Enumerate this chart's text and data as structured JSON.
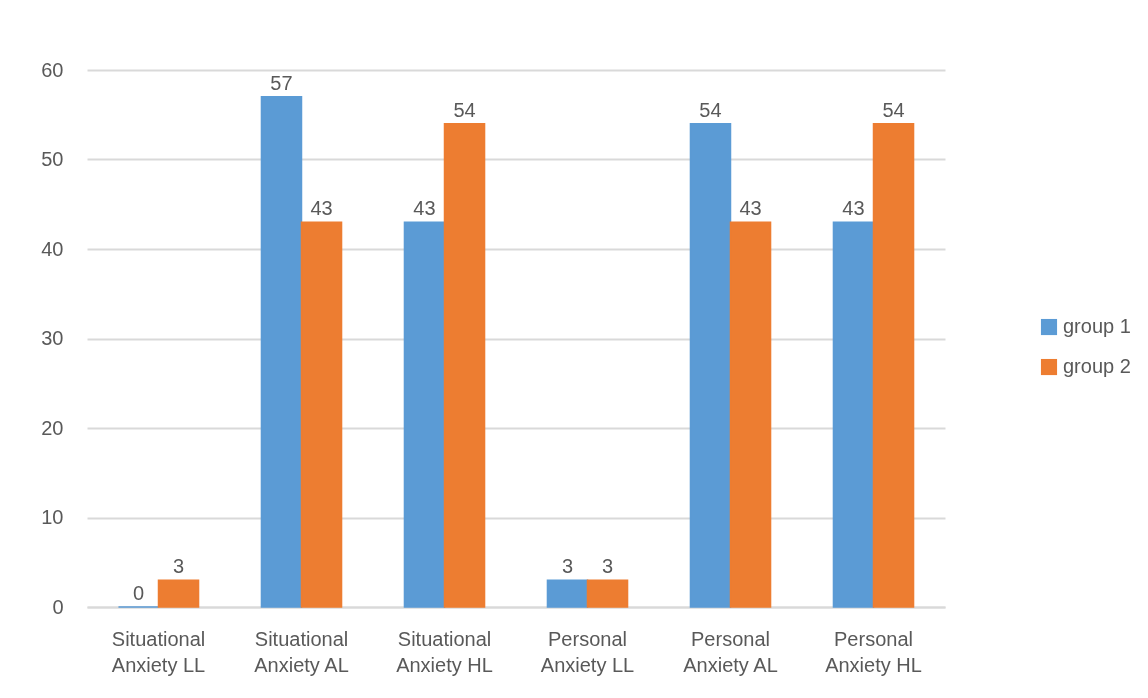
{
  "chart_data": {
    "type": "bar",
    "categories": [
      "Situational Anxiety LL",
      "Situational Anxiety AL",
      "Situational Anxiety HL",
      "Personal Anxiety LL",
      "Personal Anxiety AL",
      "Personal Anxiety HL"
    ],
    "series": [
      {
        "name": "group 1",
        "color": "#5b9bd5",
        "values": [
          0,
          57,
          43,
          3,
          54,
          43
        ]
      },
      {
        "name": "group 2",
        "color": "#ed7d31",
        "values": [
          3,
          43,
          54,
          3,
          43,
          54
        ]
      }
    ],
    "ylim": [
      0,
      60
    ],
    "yticks": [
      0,
      10,
      20,
      30,
      40,
      50,
      60
    ],
    "grid": "y",
    "legend": "right",
    "data_labels": true
  }
}
